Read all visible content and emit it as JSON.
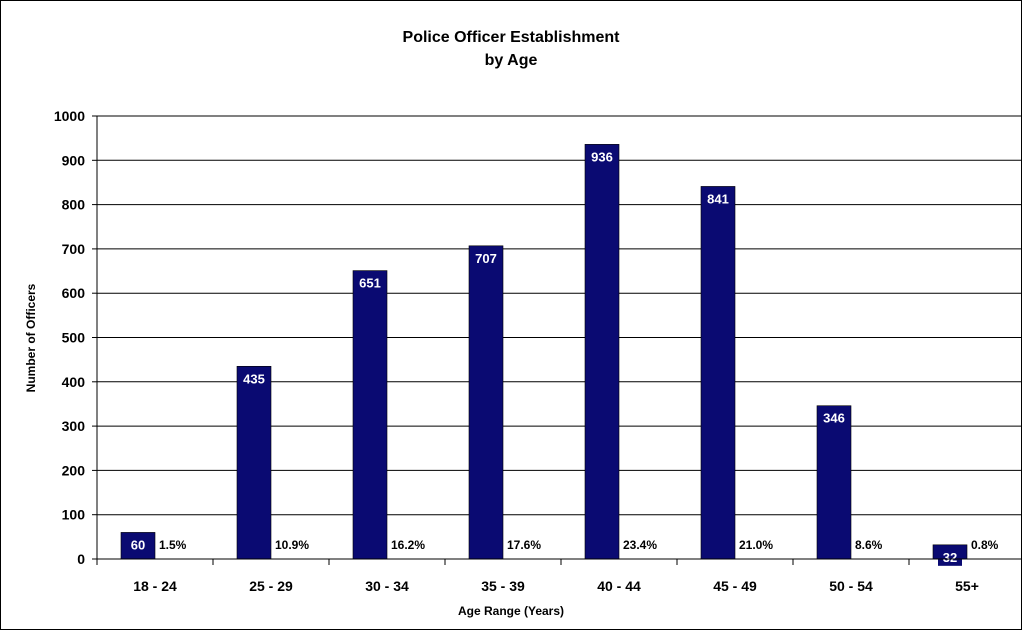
{
  "chart_data": {
    "type": "bar",
    "title": "Police Officer Establishment",
    "subtitle": "by Age",
    "xlabel": "Age Range (Years)",
    "ylabel": "Number of Officers",
    "categories": [
      "18 - 24",
      "25 - 29",
      "30 - 34",
      "35 - 39",
      "40 - 44",
      "45 - 49",
      "50 - 54",
      "55+"
    ],
    "series": [
      {
        "values": [
          60,
          435,
          651,
          707,
          936,
          841,
          346,
          32
        ],
        "value_labels": [
          "60",
          "435",
          "651",
          "707",
          "936",
          "841",
          "346",
          "32"
        ],
        "percent_labels": [
          "1.5%",
          "10.9%",
          "16.2%",
          "17.6%",
          "23.4%",
          "21.0%",
          "8.6%",
          "0.8%"
        ]
      }
    ],
    "ylim": [
      0,
      1000
    ],
    "yticks": [
      0,
      100,
      200,
      300,
      400,
      500,
      600,
      700,
      800,
      900,
      1000
    ],
    "grid": true,
    "legend": "none",
    "colors": {
      "bar": "#0a0a72",
      "grid": "#000000",
      "axis": "#000000"
    }
  }
}
